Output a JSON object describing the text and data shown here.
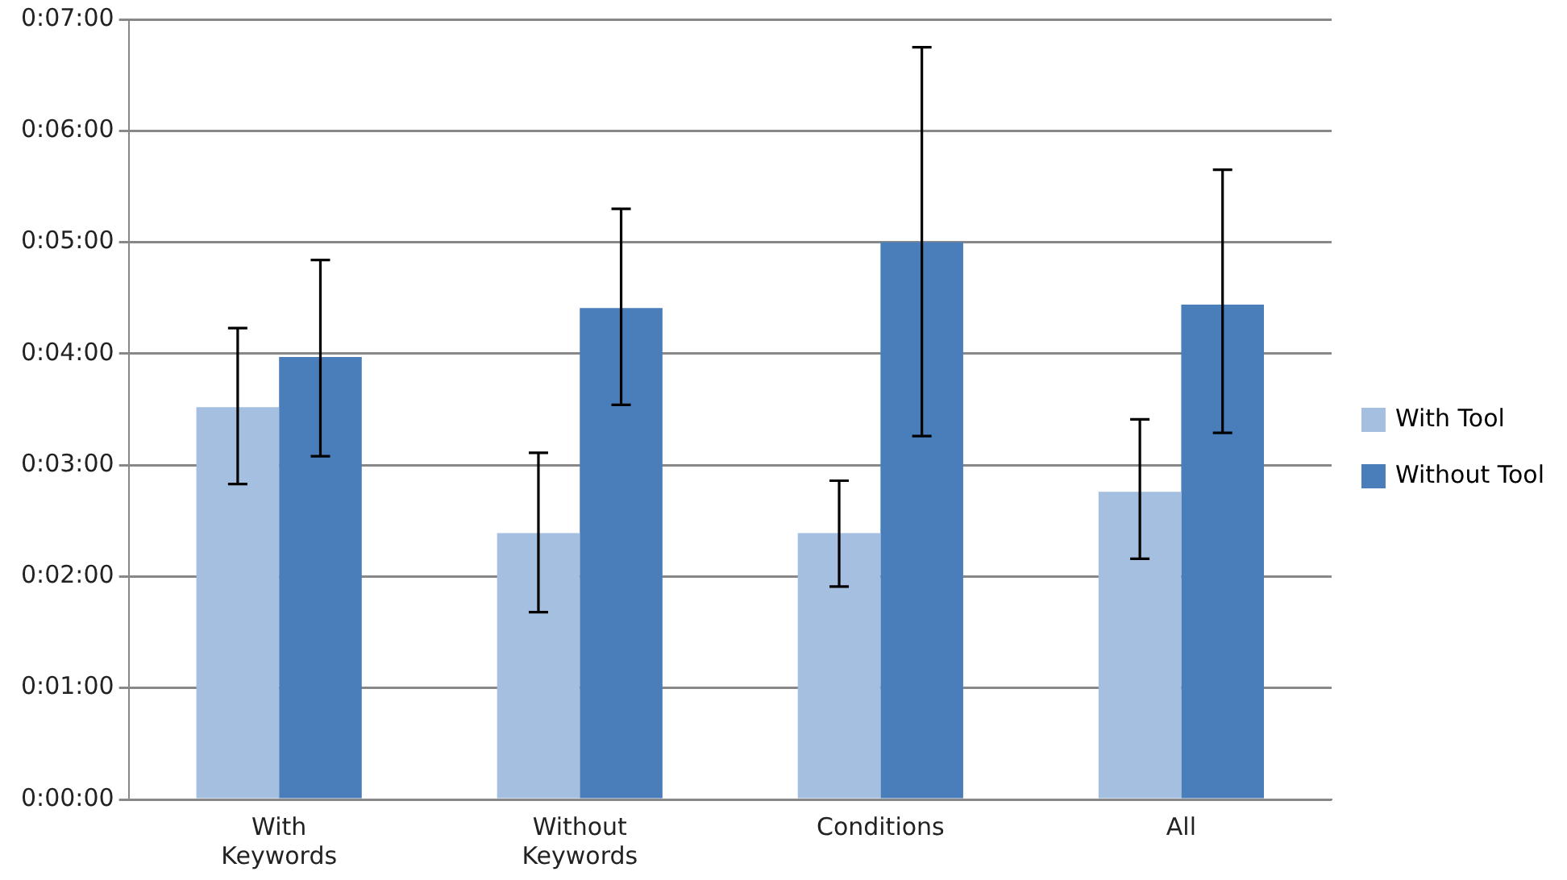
{
  "chart_data": {
    "type": "bar",
    "categories": [
      "With Keywords",
      "Without Keywords",
      "Conditions",
      "All"
    ],
    "series": [
      {
        "name": "With Tool",
        "color": "#a4bfdf",
        "values": [
          3.52,
          2.39,
          2.39,
          2.76
        ],
        "errors": [
          [
            2.83,
            4.23
          ],
          [
            1.68,
            3.11
          ],
          [
            1.91,
            2.86
          ],
          [
            2.16,
            3.41
          ]
        ]
      },
      {
        "name": "Without Tool",
        "color": "#4a7ebb",
        "values": [
          3.97,
          4.41,
          5.0,
          4.44
        ],
        "errors": [
          [
            3.08,
            4.84
          ],
          [
            3.54,
            5.3
          ],
          [
            3.26,
            6.75
          ],
          [
            3.29,
            5.65
          ]
        ]
      }
    ],
    "ylim": [
      0,
      7
    ],
    "yticks": [
      {
        "value": 0,
        "label": "0:00:00"
      },
      {
        "value": 1,
        "label": "0:01:00"
      },
      {
        "value": 2,
        "label": "0:02:00"
      },
      {
        "value": 3,
        "label": "0:03:00"
      },
      {
        "value": 4,
        "label": "0:04:00"
      },
      {
        "value": 5,
        "label": "0:05:00"
      },
      {
        "value": 6,
        "label": "0:06:00"
      },
      {
        "value": 7,
        "label": "0:07:00"
      }
    ],
    "grid": "y",
    "legend": "right"
  }
}
